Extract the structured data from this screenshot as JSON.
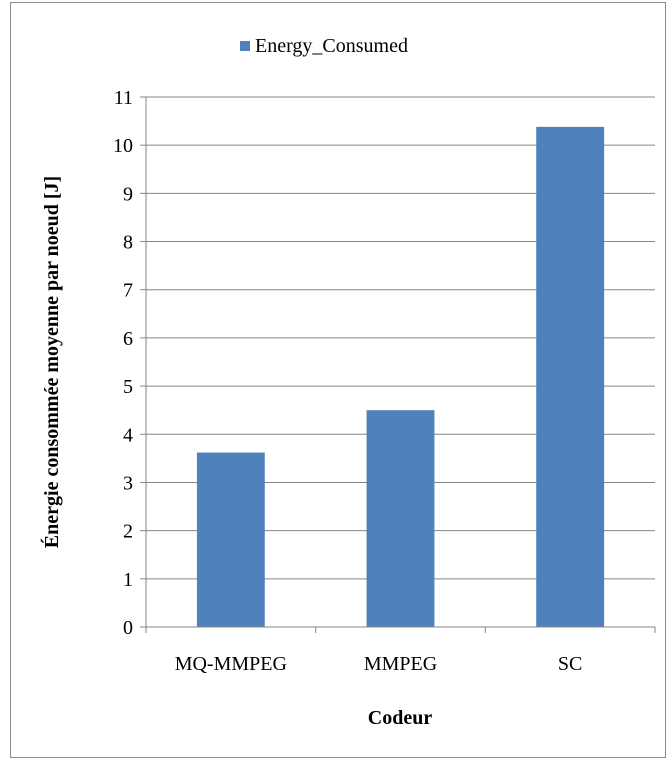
{
  "chart_data": {
    "type": "bar",
    "categories": [
      "MQ-MMPEG",
      "MMPEG",
      "SC"
    ],
    "series": [
      {
        "name": "Energy_Consumed",
        "values": [
          3.62,
          4.5,
          10.38
        ],
        "color": "#4f81bd"
      }
    ],
    "xlabel": "Codeur",
    "ylabel": "Énergie consommée moyenne par noeud [J]",
    "ylim": [
      0,
      11
    ],
    "yticks": [
      0,
      1,
      2,
      3,
      4,
      5,
      6,
      7,
      8,
      9,
      10,
      11
    ],
    "grid": true,
    "legend_position": "top"
  }
}
